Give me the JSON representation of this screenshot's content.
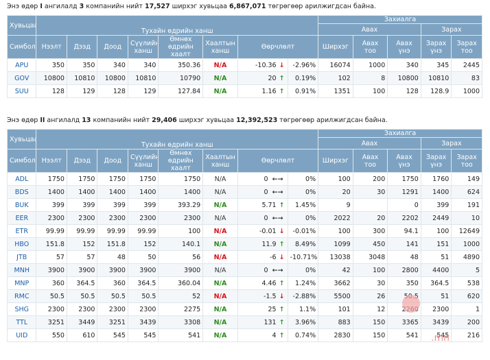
{
  "section1": {
    "summary_parts": [
      "Энэ өдөр ",
      "I",
      " ангилалд ",
      "3",
      " компанийн нийт ",
      "17,527",
      " ширхэг хувьцаа ",
      "6,867,071",
      " төгрөгөөр арилжигдсан байна."
    ],
    "headers": {
      "company": "Хувьцаа",
      "trade_group": "Тухайн өдрийн ханш",
      "order_group": "Захиалга",
      "buy_group": "Авах",
      "sell_group": "Зарах",
      "cols": [
        "Симбол",
        "Нээлт",
        "Дээд",
        "Доод",
        "Сүүлийн ханш",
        "Өмнөх өдрийн хаалт",
        "Хаалтын ханш",
        "Өөрчлөлт",
        "",
        "Ширхэг",
        "Авах тоо",
        "Авах үнэ",
        "Зарах үнэ",
        "Зарах тоо"
      ]
    },
    "rows": [
      {
        "symbol": "APU",
        "open": "350",
        "high": "350",
        "low": "340",
        "last": "340",
        "prev": "350.36",
        "close": "N/A",
        "close_style": "red",
        "change": "-10.36",
        "dir": "down",
        "pct": "-2.96%",
        "qty": "16074",
        "buy_qty": "1000",
        "buy_price": "340",
        "sell_price": "345",
        "sell_qty": "2445"
      },
      {
        "symbol": "GOV",
        "open": "10800",
        "high": "10810",
        "low": "10800",
        "last": "10810",
        "prev": "10790",
        "close": "N/A",
        "close_style": "green",
        "change": "20",
        "dir": "up",
        "pct": "0.19%",
        "qty": "102",
        "buy_qty": "8",
        "buy_price": "10800",
        "sell_price": "10810",
        "sell_qty": "83"
      },
      {
        "symbol": "SUU",
        "open": "128",
        "high": "129",
        "low": "128",
        "last": "129",
        "prev": "127.84",
        "close": "N/A",
        "close_style": "green",
        "change": "1.16",
        "dir": "up",
        "pct": "0.91%",
        "qty": "1351",
        "buy_qty": "100",
        "buy_price": "128",
        "sell_price": "128.9",
        "sell_qty": "1000"
      }
    ]
  },
  "section2": {
    "summary_parts": [
      "Энэ өдөр ",
      "II",
      " ангилалд ",
      "13",
      " компанийн нийт ",
      "29,406",
      " ширхэг хувьцаа ",
      "12,392,523",
      " төгрөгөөр арилжигдсан байна."
    ],
    "headers": {
      "company": "Хувьцаа",
      "trade_group": "Тухайн өдрийн ханш",
      "order_group": "Захиалга",
      "buy_group": "Авах",
      "sell_group": "Зарах",
      "cols": [
        "Симбол",
        "Нээлт",
        "Дээд",
        "Доод",
        "Сүүлийн ханш",
        "Өмнөх өдрийн хаалт",
        "Хаалтын ханш",
        "Өөрчлөлт",
        "",
        "Ширхэг",
        "Авах тоо",
        "Авах үнэ",
        "Зарах үнэ",
        "Зарах тоо"
      ]
    },
    "rows": [
      {
        "symbol": "ADL",
        "open": "1750",
        "high": "1750",
        "low": "1750",
        "last": "1750",
        "prev": "1750",
        "close": "N/A",
        "close_style": "plain",
        "change": "0",
        "dir": "flat",
        "pct": "0%",
        "qty": "100",
        "buy_qty": "200",
        "buy_price": "1750",
        "sell_price": "1760",
        "sell_qty": "149"
      },
      {
        "symbol": "BDS",
        "open": "1400",
        "high": "1400",
        "low": "1400",
        "last": "1400",
        "prev": "1400",
        "close": "N/A",
        "close_style": "plain",
        "change": "0",
        "dir": "flat",
        "pct": "0%",
        "qty": "20",
        "buy_qty": "30",
        "buy_price": "1291",
        "sell_price": "1400",
        "sell_qty": "624"
      },
      {
        "symbol": "BUK",
        "open": "399",
        "high": "399",
        "low": "399",
        "last": "399",
        "prev": "393.29",
        "close": "N/A",
        "close_style": "green",
        "change": "5.71",
        "dir": "up",
        "pct": "1.45%",
        "qty": "9",
        "buy_qty": "",
        "buy_price": "0",
        "sell_price": "399",
        "sell_qty": "191"
      },
      {
        "symbol": "EER",
        "open": "2300",
        "high": "2300",
        "low": "2300",
        "last": "2300",
        "prev": "2300",
        "close": "N/A",
        "close_style": "plain",
        "change": "0",
        "dir": "flat",
        "pct": "0%",
        "qty": "2022",
        "buy_qty": "20",
        "buy_price": "2202",
        "sell_price": "2449",
        "sell_qty": "10"
      },
      {
        "symbol": "ETR",
        "open": "99.99",
        "high": "99.99",
        "low": "99.99",
        "last": "99.99",
        "prev": "100",
        "close": "N/A",
        "close_style": "red",
        "change": "-0.01",
        "dir": "down",
        "pct": "-0.01%",
        "qty": "100",
        "buy_qty": "300",
        "buy_price": "94.1",
        "sell_price": "100",
        "sell_qty": "12649"
      },
      {
        "symbol": "HBO",
        "open": "151.8",
        "high": "152",
        "low": "151.8",
        "last": "152",
        "prev": "140.1",
        "close": "N/A",
        "close_style": "green",
        "change": "11.9",
        "dir": "up",
        "pct": "8.49%",
        "qty": "1099",
        "buy_qty": "450",
        "buy_price": "141",
        "sell_price": "151",
        "sell_qty": "1000"
      },
      {
        "symbol": "JTB",
        "open": "57",
        "high": "57",
        "low": "48",
        "last": "50",
        "prev": "56",
        "close": "N/A",
        "close_style": "red",
        "change": "-6",
        "dir": "down",
        "pct": "-10.71%",
        "qty": "13038",
        "buy_qty": "3048",
        "buy_price": "48",
        "sell_price": "51",
        "sell_qty": "4890"
      },
      {
        "symbol": "MNH",
        "open": "3900",
        "high": "3900",
        "low": "3900",
        "last": "3900",
        "prev": "3900",
        "close": "N/A",
        "close_style": "plain",
        "change": "0",
        "dir": "flat",
        "pct": "0%",
        "qty": "42",
        "buy_qty": "100",
        "buy_price": "2800",
        "sell_price": "4400",
        "sell_qty": "5"
      },
      {
        "symbol": "MNP",
        "open": "360",
        "high": "364.5",
        "low": "360",
        "last": "364.5",
        "prev": "360.04",
        "close": "N/A",
        "close_style": "green",
        "change": "4.46",
        "dir": "up",
        "pct": "1.24%",
        "qty": "3662",
        "buy_qty": "30",
        "buy_price": "350",
        "sell_price": "364.5",
        "sell_qty": "538"
      },
      {
        "symbol": "RMC",
        "open": "50.5",
        "high": "50.5",
        "low": "50.5",
        "last": "50.5",
        "prev": "52",
        "close": "N/A",
        "close_style": "red",
        "change": "-1.5",
        "dir": "down",
        "pct": "-2.88%",
        "qty": "5500",
        "buy_qty": "26",
        "buy_price": "50.5",
        "sell_price": "51",
        "sell_qty": "620"
      },
      {
        "symbol": "SHG",
        "open": "2300",
        "high": "2300",
        "low": "2300",
        "last": "2300",
        "prev": "2275",
        "close": "N/A",
        "close_style": "green",
        "change": "25",
        "dir": "up",
        "pct": "1.1%",
        "qty": "101",
        "buy_qty": "12",
        "buy_price": "2260",
        "sell_price": "2300",
        "sell_qty": "1"
      },
      {
        "symbol": "TTL",
        "open": "3251",
        "high": "3449",
        "low": "3251",
        "last": "3439",
        "prev": "3308",
        "close": "N/A",
        "close_style": "green",
        "change": "131",
        "dir": "up",
        "pct": "3.96%",
        "qty": "883",
        "buy_qty": "150",
        "buy_price": "3365",
        "sell_price": "3439",
        "sell_qty": "200"
      },
      {
        "symbol": "UID",
        "open": "550",
        "high": "610",
        "low": "545",
        "last": "545",
        "prev": "541",
        "close": "N/A",
        "close_style": "green",
        "change": "4",
        "dir": "up",
        "pct": "0.74%",
        "qty": "2830",
        "buy_qty": "150",
        "buy_price": "541",
        "sell_price": "545",
        "sell_qty": "216"
      }
    ]
  },
  "watermark": {
    "tld": ".mn"
  }
}
